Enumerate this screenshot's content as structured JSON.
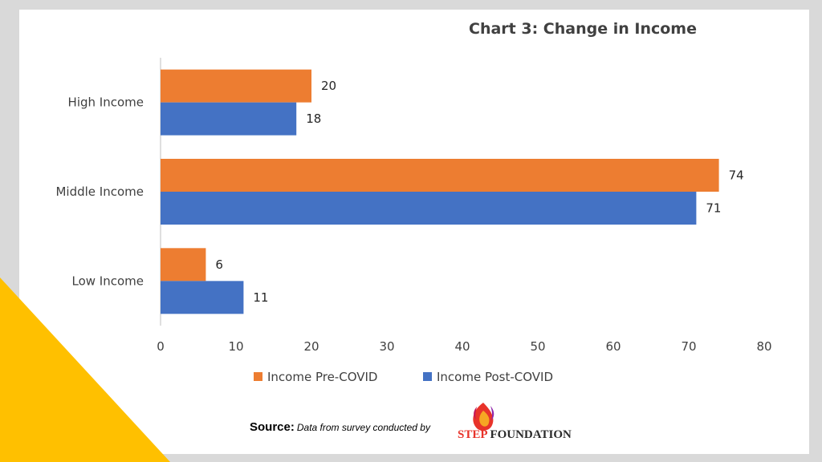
{
  "colors": {
    "slide_background": "#d9d9d9",
    "panel_background": "#ffffff",
    "accent_triangle": "#ffc000",
    "pre_covid": "#ed7d31",
    "post_covid": "#4472c4",
    "axis": "#bfbfbf"
  },
  "chart_data": {
    "type": "bar",
    "orientation": "horizontal",
    "title": "Chart 3: Change in Income",
    "categories": [
      "High Income",
      "Middle Income",
      "Low Income"
    ],
    "series": [
      {
        "name": "Income Pre-COVID",
        "values": [
          20,
          74,
          6
        ]
      },
      {
        "name": "Income Post-COVID",
        "values": [
          18,
          71,
          11
        ]
      }
    ],
    "data_labels": [
      [
        "20",
        "74",
        "6"
      ],
      [
        "18",
        "71",
        "11"
      ]
    ],
    "xlim": [
      0,
      80
    ],
    "x_ticks": [
      "0",
      "10",
      "20",
      "30",
      "40",
      "50",
      "60",
      "70",
      "80"
    ],
    "xlabel": "",
    "ylabel": "",
    "grid": false,
    "legend": "bottom"
  },
  "footer": {
    "source_label": "Source:",
    "source_text": "Data from survey conducted by",
    "logo_ste": "STEP",
    "logo_foundation": "FOUNDATION"
  }
}
